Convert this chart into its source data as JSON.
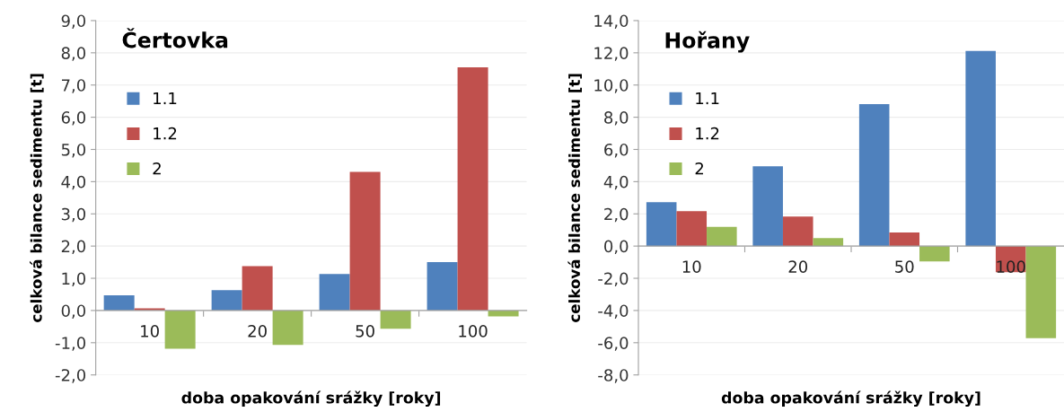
{
  "chart_data": [
    {
      "type": "bar",
      "title": "Čertovka",
      "xlabel": "doba opakování srážky [roky]",
      "ylabel": "celková bilance sedimentu [t]",
      "categories": [
        "10",
        "20",
        "50",
        "100"
      ],
      "series": [
        {
          "name": "1.1",
          "color": "#4f81bd",
          "values": [
            0.47,
            0.63,
            1.13,
            1.5
          ]
        },
        {
          "name": "1.2",
          "color": "#c0504d",
          "values": [
            0.07,
            1.38,
            4.3,
            7.55
          ]
        },
        {
          "name": "2",
          "color": "#9bbb59",
          "values": [
            -1.19,
            -1.07,
            -0.57,
            -0.18
          ]
        }
      ],
      "ylim": [
        -2,
        9
      ],
      "yticks": [
        {
          "value": -2,
          "label": "-2,0"
        },
        {
          "value": -1,
          "label": "-1,0"
        },
        {
          "value": 0,
          "label": "0,0"
        },
        {
          "value": 1,
          "label": "1,0"
        },
        {
          "value": 2,
          "label": "2,0"
        },
        {
          "value": 3,
          "label": "3,0"
        },
        {
          "value": 4,
          "label": "4,0"
        },
        {
          "value": 5,
          "label": "5,0"
        },
        {
          "value": 6,
          "label": "6,0"
        },
        {
          "value": 7,
          "label": "7,0"
        },
        {
          "value": 8,
          "label": "8,0"
        },
        {
          "value": 9,
          "label": "9,0"
        }
      ],
      "grid": "y",
      "legend": "top left"
    },
    {
      "type": "bar",
      "title": "Hořany",
      "xlabel": "doba opakování srážky [roky]",
      "ylabel": "celková bilance sedimentu [t]",
      "categories": [
        "10",
        "20",
        "50",
        "100"
      ],
      "series": [
        {
          "name": "1.1",
          "color": "#4f81bd",
          "values": [
            2.73,
            4.96,
            8.82,
            12.12
          ]
        },
        {
          "name": "1.2",
          "color": "#c0504d",
          "values": [
            2.17,
            1.83,
            0.84,
            -1.62
          ]
        },
        {
          "name": "2",
          "color": "#9bbb59",
          "values": [
            1.19,
            0.49,
            -0.96,
            -5.72
          ]
        }
      ],
      "ylim": [
        -8,
        14
      ],
      "yticks": [
        {
          "value": -8,
          "label": "-8,0"
        },
        {
          "value": -6,
          "label": "-6,0"
        },
        {
          "value": -4,
          "label": "-4,0"
        },
        {
          "value": -2,
          "label": "-2,0"
        },
        {
          "value": 0,
          "label": "0,0"
        },
        {
          "value": 2,
          "label": "2,0"
        },
        {
          "value": 4,
          "label": "4,0"
        },
        {
          "value": 6,
          "label": "6,0"
        },
        {
          "value": 8,
          "label": "8,0"
        },
        {
          "value": 10,
          "label": "10,0"
        },
        {
          "value": 12,
          "label": "12,0"
        },
        {
          "value": 14,
          "label": "14,0"
        }
      ],
      "grid": "y",
      "legend": "top left"
    }
  ]
}
